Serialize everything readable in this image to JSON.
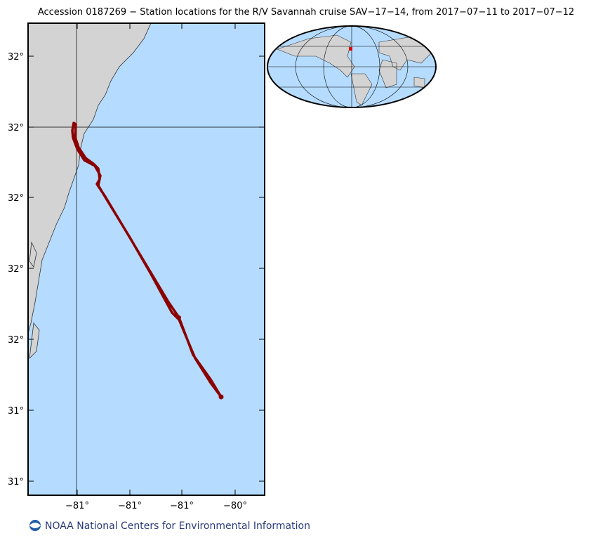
{
  "map": {
    "title": "Accession 0187269 − Station locations for the R/V Savannah cruise SAV−17−14, from 2017−07−11 to 2017−07−12",
    "lat_labels": [
      "32°",
      "32°",
      "32°",
      "32°",
      "32°",
      "31°",
      "31°"
    ],
    "lon_labels": [
      "−81°",
      "−81°",
      "−81°",
      "−80°"
    ]
  },
  "footer": {
    "text": "NOAA National Centers for Environmental Information"
  }
}
